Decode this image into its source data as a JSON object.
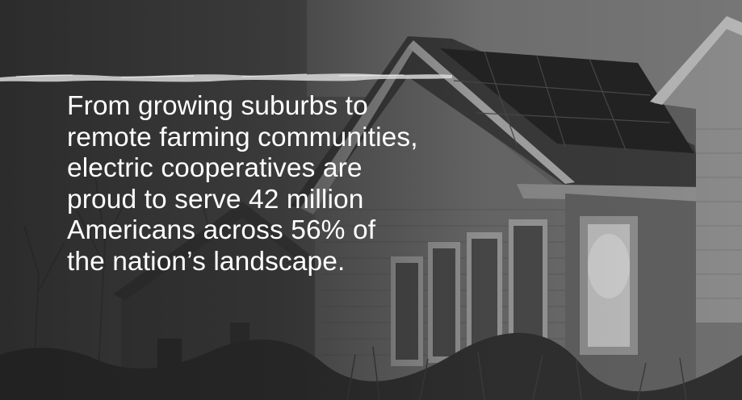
{
  "headline": {
    "lines": [
      "From growing suburbs to",
      "remote farming communities,",
      "electric cooperatives are",
      "proud to serve 42 million",
      "Americans across 56% of",
      "the nation’s landscape."
    ]
  },
  "colors": {
    "text": "#ffffff",
    "background": "#4a4a4a"
  }
}
